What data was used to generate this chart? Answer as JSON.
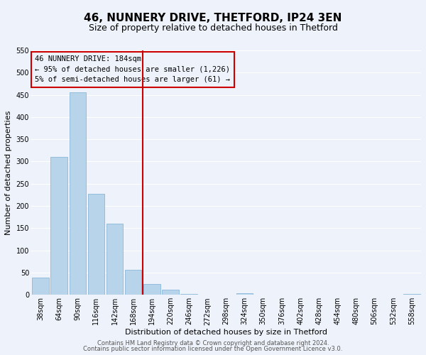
{
  "title": "46, NUNNERY DRIVE, THETFORD, IP24 3EN",
  "subtitle": "Size of property relative to detached houses in Thetford",
  "xlabel": "Distribution of detached houses by size in Thetford",
  "ylabel": "Number of detached properties",
  "bar_labels": [
    "38sqm",
    "64sqm",
    "90sqm",
    "116sqm",
    "142sqm",
    "168sqm",
    "194sqm",
    "220sqm",
    "246sqm",
    "272sqm",
    "298sqm",
    "324sqm",
    "350sqm",
    "376sqm",
    "402sqm",
    "428sqm",
    "454sqm",
    "480sqm",
    "506sqm",
    "532sqm",
    "558sqm"
  ],
  "bar_values": [
    38,
    310,
    455,
    228,
    160,
    57,
    25,
    12,
    2,
    0,
    0,
    4,
    0,
    0,
    0,
    1,
    0,
    0,
    0,
    0,
    2
  ],
  "bar_color": "#b8d4ea",
  "bar_edge_color": "#88b8d8",
  "vline_x": 5.5,
  "vline_color": "#cc0000",
  "annotation_line1": "46 NUNNERY DRIVE: 184sqm",
  "annotation_line2": "← 95% of detached houses are smaller (1,226)",
  "annotation_line3": "5% of semi-detached houses are larger (61) →",
  "annotation_box_color": "#cc0000",
  "ylim": [
    0,
    550
  ],
  "yticks": [
    0,
    50,
    100,
    150,
    200,
    250,
    300,
    350,
    400,
    450,
    500,
    550
  ],
  "footer1": "Contains HM Land Registry data © Crown copyright and database right 2024.",
  "footer2": "Contains public sector information licensed under the Open Government Licence v3.0.",
  "background_color": "#eef2fa",
  "grid_color": "#ffffff",
  "title_fontsize": 11,
  "subtitle_fontsize": 9,
  "axis_label_fontsize": 8,
  "tick_fontsize": 7,
  "annotation_fontsize": 7.5,
  "footer_fontsize": 6
}
